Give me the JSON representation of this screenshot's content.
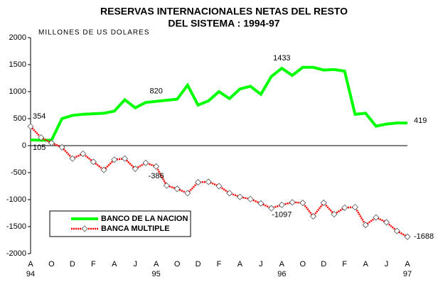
{
  "chart_data": {
    "type": "line",
    "title": [
      "RESERVAS INTERNACIONALES NETAS DEL RESTO",
      "DEL SISTEMA : 1994-97"
    ],
    "y_axis_label": "MILLONES DE US DOLARES",
    "categories": [
      "A\n94",
      null,
      "O",
      null,
      "D",
      null,
      "F",
      null,
      "A",
      null,
      "J",
      null,
      "A\n95",
      null,
      "O",
      null,
      "D",
      null,
      "F",
      null,
      "A",
      null,
      "J",
      null,
      "A\n96",
      null,
      "O",
      null,
      "D",
      null,
      "F",
      null,
      "A",
      null,
      "J",
      null,
      "A\n97"
    ],
    "ylim": [
      -2000,
      2000
    ],
    "yticks": [
      -2000,
      -1500,
      -1000,
      -500,
      0,
      500,
      1000,
      1500,
      2000
    ],
    "series": [
      {
        "name": "BANCO DE LA NACION",
        "color": "#00ff00",
        "values": [
          105,
          100,
          100,
          500,
          560,
          580,
          590,
          600,
          640,
          850,
          700,
          800,
          820,
          840,
          860,
          1120,
          750,
          830,
          1000,
          870,
          1050,
          1100,
          950,
          1280,
          1433,
          1300,
          1450,
          1450,
          1400,
          1410,
          1380,
          580,
          600,
          360,
          400,
          420,
          419
        ],
        "value_labels": [
          "105",
          null,
          null,
          null,
          null,
          null,
          null,
          null,
          null,
          null,
          null,
          null,
          "820",
          null,
          null,
          null,
          null,
          null,
          null,
          null,
          null,
          null,
          null,
          null,
          "1433",
          null,
          null,
          null,
          null,
          null,
          null,
          null,
          null,
          null,
          null,
          null,
          "419"
        ]
      },
      {
        "name": "BANCA MULTIPLE",
        "color": "#ff0000",
        "values": [
          354,
          150,
          50,
          -30,
          -240,
          -150,
          -300,
          -450,
          -260,
          -240,
          -430,
          -320,
          -386,
          -740,
          -800,
          -880,
          -680,
          -670,
          -750,
          -880,
          -950,
          -990,
          -1070,
          -1160,
          -1097,
          -1050,
          -1060,
          -1310,
          -1060,
          -1270,
          -1150,
          -1140,
          -1470,
          -1330,
          -1420,
          -1580,
          -1688
        ],
        "value_labels": [
          "354",
          null,
          null,
          null,
          null,
          null,
          null,
          null,
          null,
          null,
          null,
          null,
          "-386",
          null,
          null,
          null,
          null,
          null,
          null,
          null,
          null,
          null,
          null,
          null,
          "-1097",
          null,
          null,
          null,
          null,
          null,
          null,
          null,
          null,
          null,
          null,
          null,
          "-1688"
        ]
      }
    ]
  }
}
